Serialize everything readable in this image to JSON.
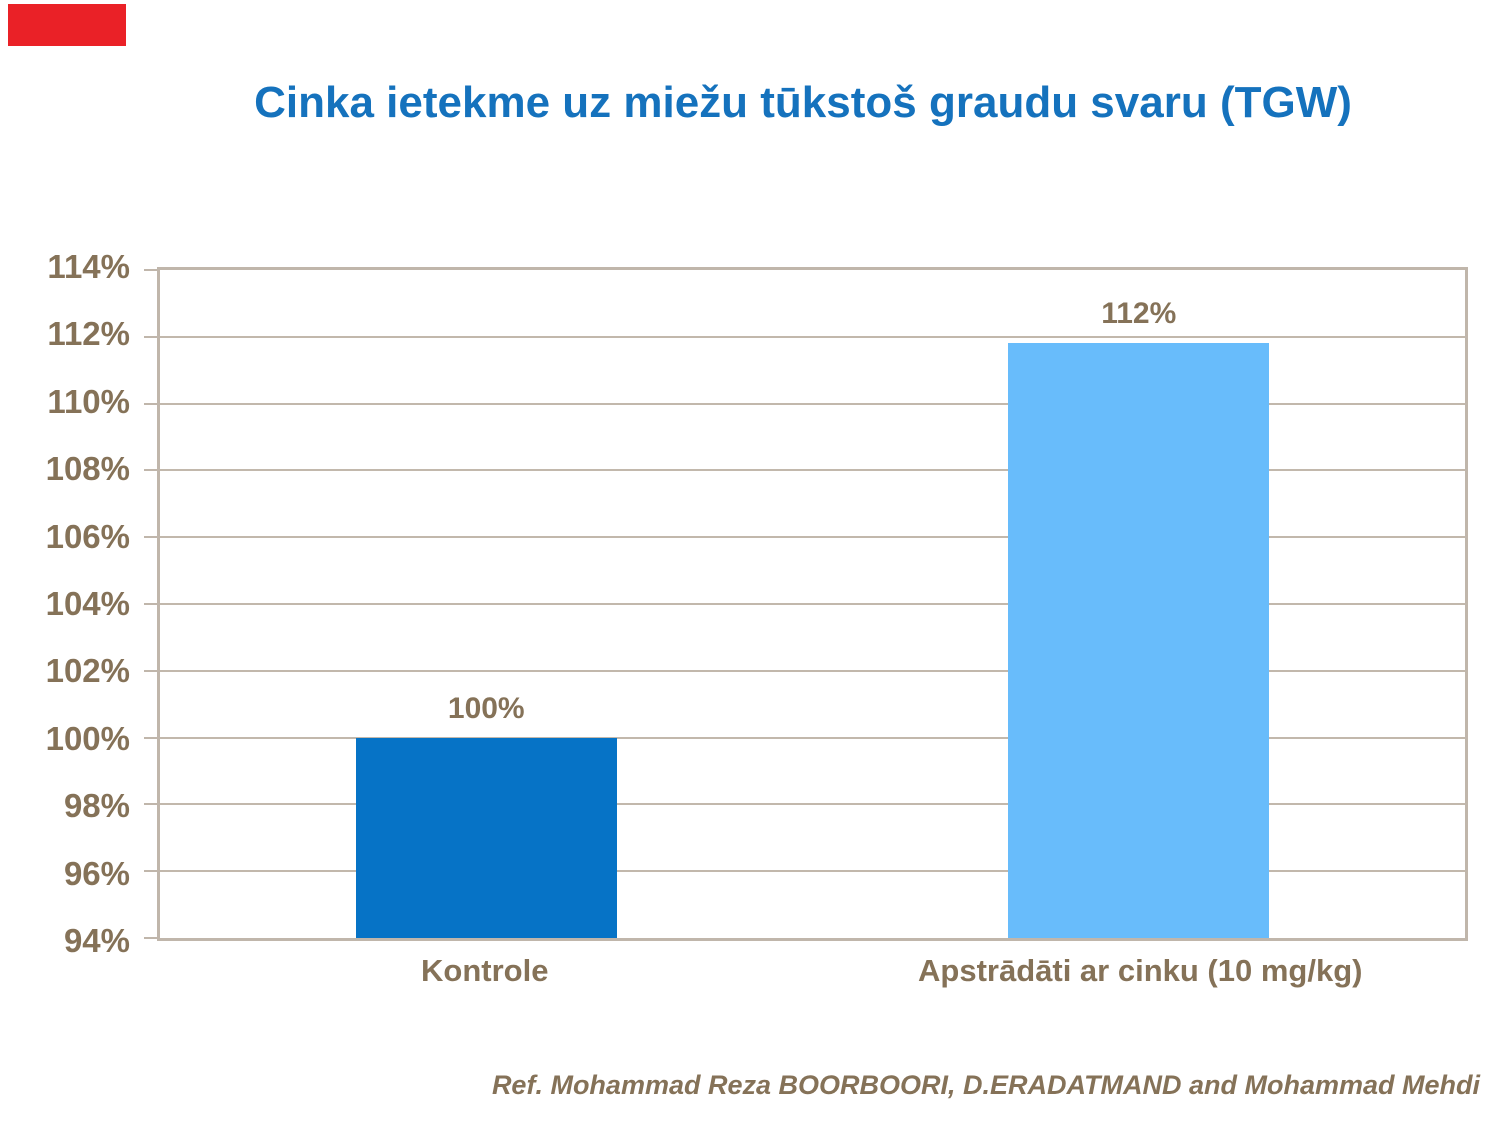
{
  "slide": {
    "footer": "Ref. Mohammad Reza BOORBOORI, D.ERADATMAND and Mohammad Mehdi"
  },
  "colors": {
    "accent_red": "#EA2127",
    "title_blue": "#1572BD",
    "axis_text": "#857258",
    "grid_line": "#C2B8AC",
    "plot_border": "#C0B6AB",
    "bar_control_blue": "#0673C6",
    "bar_treated_blue": "#68BCFB"
  },
  "chart_data": {
    "type": "bar",
    "title": "Cinka ietekme uz miežu tūkstoš graudu svaru (TGW)",
    "categories": [
      "Kontrole",
      "Apstrādāti ar cinku (10 mg/kg)"
    ],
    "values": [
      100,
      111.8
    ],
    "data_labels": [
      "100%",
      "112%"
    ],
    "bar_colors": [
      "#0673C6",
      "#68BCFB"
    ],
    "ylim": [
      94,
      114
    ],
    "ytick_step": 2,
    "ytick_suffix": "%",
    "ytick_labels": [
      "94%",
      "96%",
      "98%",
      "100%",
      "102%",
      "104%",
      "106%",
      "108%",
      "110%",
      "112%",
      "114%"
    ],
    "xlabel": "",
    "ylabel": "",
    "grid": true,
    "legend": false
  }
}
